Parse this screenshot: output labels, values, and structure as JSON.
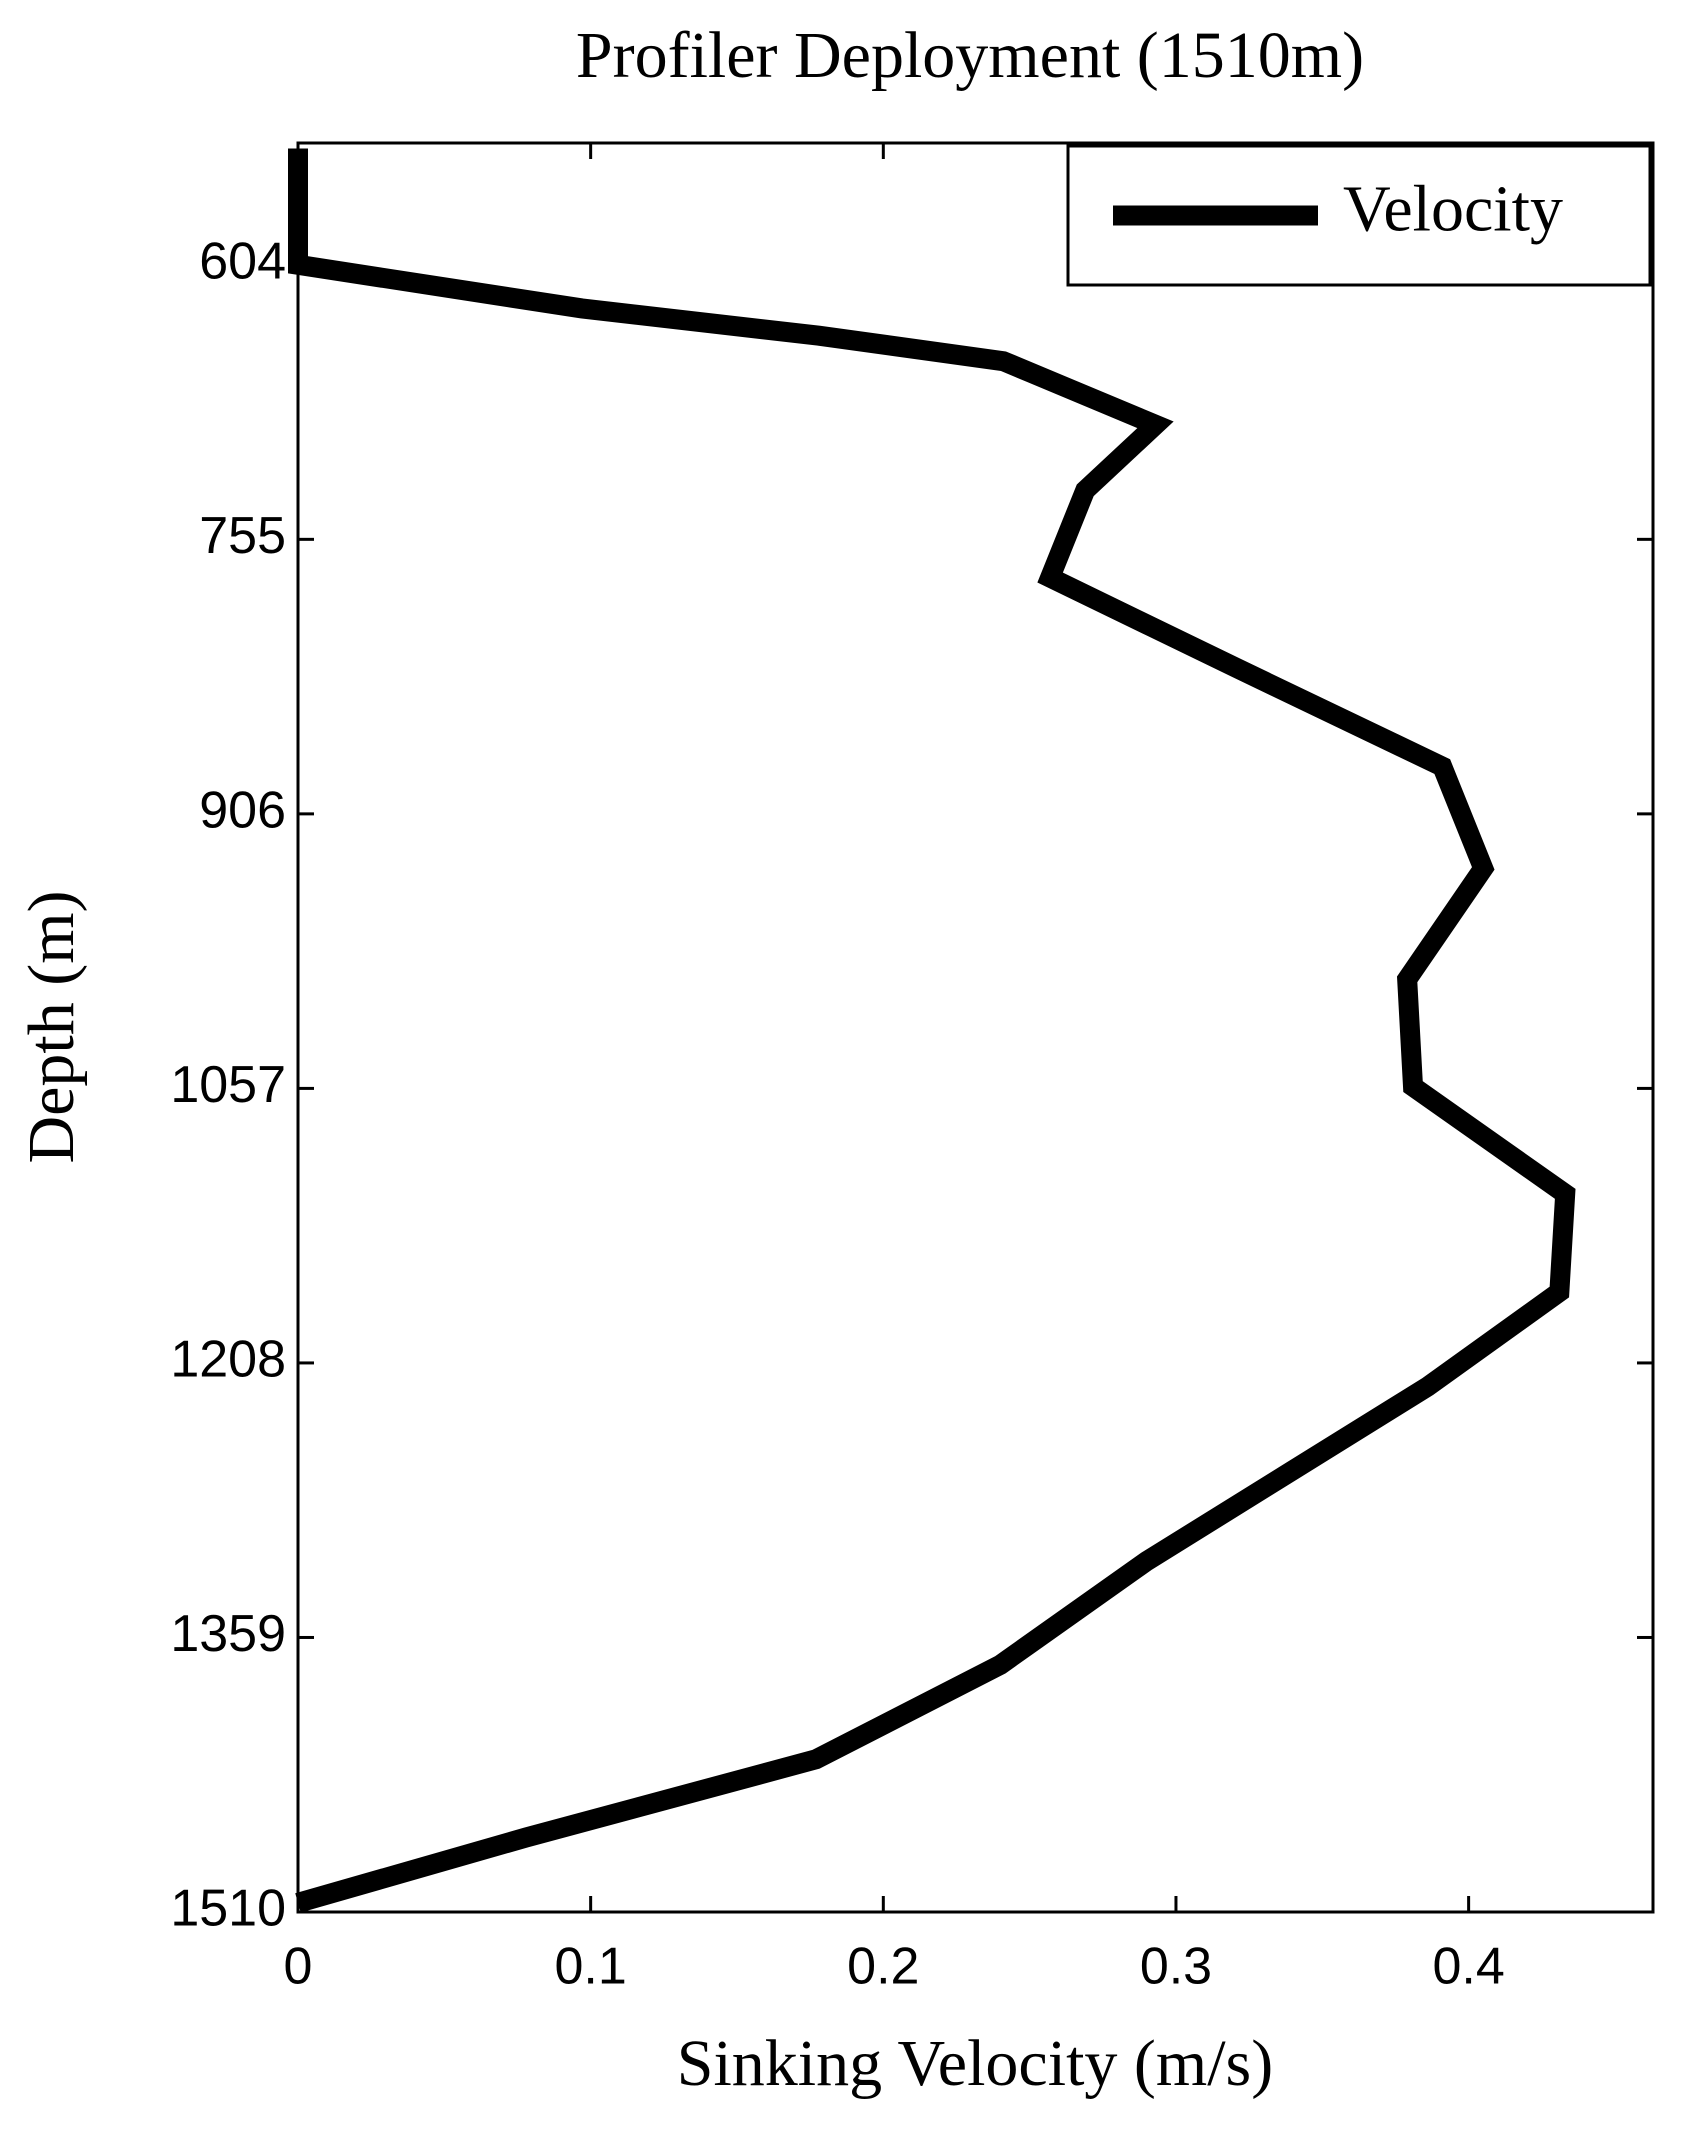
{
  "chart_data": {
    "type": "line",
    "title": "Profiler Deployment (1510m)",
    "x_label": "Sinking Velocity (m/s)",
    "y_label": "Depth (m)",
    "xlim": [
      0,
      0.463
    ],
    "xticks": [
      0,
      0.1,
      0.2,
      0.3,
      0.4
    ],
    "ylim": [
      1510,
      537
    ],
    "yticks": [
      604,
      755,
      906,
      1057,
      1208,
      1359,
      1510
    ],
    "legend": "upper right",
    "series": [
      {
        "name": "Velocity",
        "color": "#000000",
        "depth": [
          540,
          604,
          628,
          643,
          657,
          692,
          728,
          776,
          826,
          880,
          936,
          997,
          1056,
          1115,
          1169,
          1221,
          1268,
          1317,
          1374,
          1426,
          1469,
          1505
        ],
        "values": [
          0,
          0,
          0.097,
          0.178,
          0.241,
          0.293,
          0.269,
          0.257,
          0.321,
          0.391,
          0.405,
          0.379,
          0.381,
          0.433,
          0.431,
          0.386,
          0.339,
          0.29,
          0.24,
          0.177,
          0.078,
          0
        ]
      }
    ]
  }
}
